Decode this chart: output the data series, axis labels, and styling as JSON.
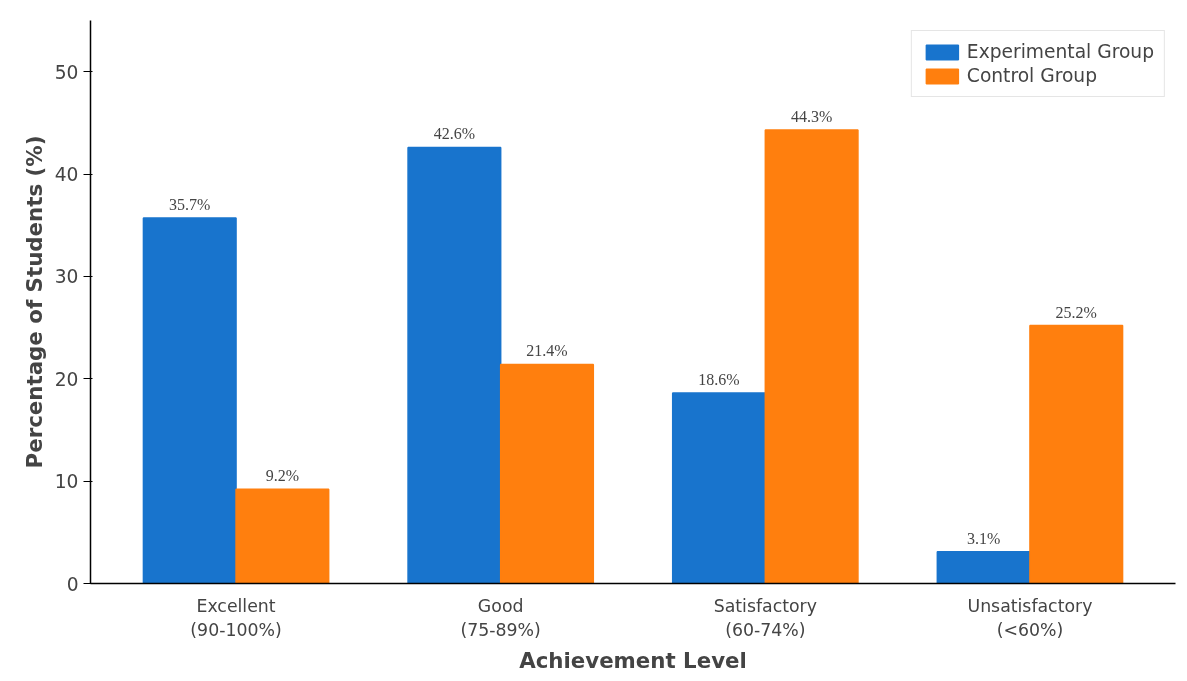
{
  "chart_data": {
    "type": "bar",
    "xlabel": "Achievement Level",
    "ylabel": "Percentage of Students (%)",
    "categories": [
      "Excellent\n(90-100%)",
      "Good\n(75-89%)",
      "Satisfactory\n(60-74%)",
      "Unsatisfactory\n(<60%)"
    ],
    "series": [
      {
        "name": "Experimental Group",
        "color": "#1874cd",
        "values": [
          35.7,
          42.6,
          18.6,
          3.1
        ],
        "value_labels": [
          "35.7%",
          "42.6%",
          "18.6%",
          "3.1%"
        ]
      },
      {
        "name": "Control Group",
        "color": "#ff7f0e",
        "values": [
          9.2,
          21.4,
          44.3,
          25.2
        ],
        "value_labels": [
          "9.2%",
          "21.4%",
          "44.3%",
          "25.2%"
        ]
      }
    ],
    "ylim": [
      0,
      55
    ],
    "yticks": [
      0,
      10,
      20,
      30,
      40,
      50
    ],
    "grid": false,
    "legend": "top right"
  }
}
